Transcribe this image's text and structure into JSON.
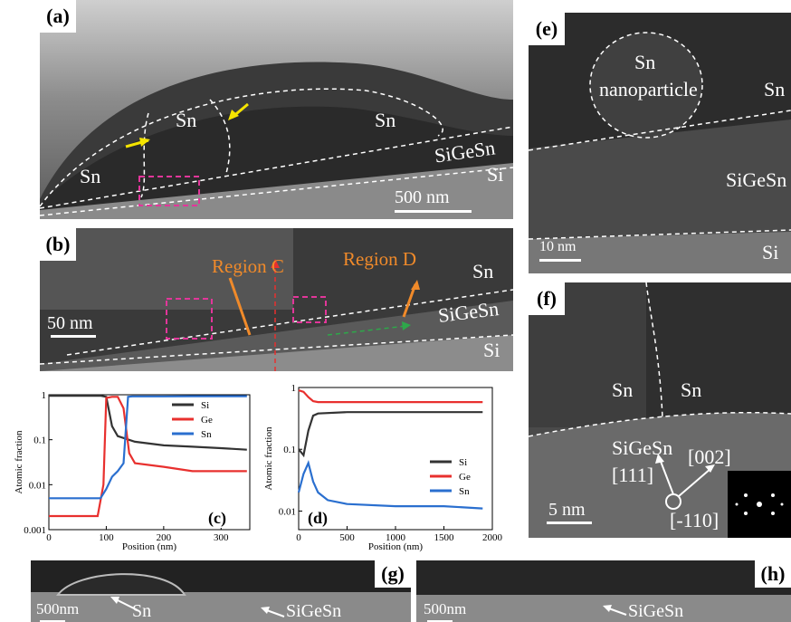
{
  "panels": {
    "a": {
      "tag": "(a)",
      "labels": [
        "Sn",
        "Sn",
        "Sn",
        "SiGeSn",
        "Si"
      ],
      "scale": "500 nm"
    },
    "b": {
      "tag": "(b)",
      "regionC": "Region C",
      "regionD": "Region D",
      "sn": "Sn",
      "sigesn": "SiGeSn",
      "si": "Si",
      "scale": "50 nm"
    },
    "e": {
      "tag": "(e)",
      "np1": "Sn",
      "np2": "nanoparticle",
      "sn": "Sn",
      "sigesn": "SiGeSn",
      "si": "Si",
      "scale": "10 nm"
    },
    "f": {
      "tag": "(f)",
      "sn1": "Sn",
      "sn2": "Sn",
      "sigesn": "SiGeSn",
      "d111": "[111]",
      "d002": "[002]",
      "d110": "[-110]",
      "scale": "5 nm"
    },
    "g": {
      "tag": "(g)",
      "scale": "500nm",
      "sn": "Sn",
      "sigesn": "SiGeSn"
    },
    "h": {
      "tag": "(h)",
      "scale": "500nm",
      "sigesn": "SiGeSn"
    }
  },
  "colors": {
    "si": "#333333",
    "ge": "#e8302e",
    "sn": "#2a6fcf",
    "magenta": "#e2369a",
    "orange": "#f08a2a"
  },
  "chart_data": [
    {
      "type": "line",
      "tag": "(c)",
      "xlabel": "Position (nm)",
      "ylabel": "Atomic fraction",
      "xlim": [
        0,
        350
      ],
      "ylim": [
        0.001,
        1
      ],
      "yscale": "log",
      "xticks": [
        "0",
        "100",
        "200",
        "300"
      ],
      "yticks": [
        "0.001",
        "0.01",
        "0.1",
        "1"
      ],
      "legend": "top-right",
      "series": [
        {
          "name": "Si",
          "x": [
            0,
            90,
            100,
            110,
            120,
            150,
            200,
            250,
            300,
            345
          ],
          "y": [
            0.95,
            0.95,
            0.9,
            0.2,
            0.12,
            0.09,
            0.075,
            0.07,
            0.065,
            0.06
          ]
        },
        {
          "name": "Ge",
          "x": [
            0,
            85,
            95,
            100,
            110,
            120,
            130,
            140,
            150,
            200,
            250,
            300,
            345
          ],
          "y": [
            0.002,
            0.002,
            0.01,
            0.85,
            0.9,
            0.9,
            0.5,
            0.05,
            0.03,
            0.025,
            0.02,
            0.02,
            0.02
          ]
        },
        {
          "name": "Sn",
          "x": [
            0,
            90,
            100,
            110,
            120,
            130,
            138,
            145,
            200,
            250,
            300,
            345
          ],
          "y": [
            0.005,
            0.005,
            0.008,
            0.015,
            0.02,
            0.03,
            0.9,
            0.92,
            0.92,
            0.93,
            0.93,
            0.93
          ]
        }
      ]
    },
    {
      "type": "line",
      "tag": "(d)",
      "xlabel": "Position (nm)",
      "ylabel": "Atomic fraction",
      "xlim": [
        0,
        2000
      ],
      "ylim": [
        0.005,
        1
      ],
      "yscale": "log",
      "xticks": [
        "0",
        "500",
        "1000",
        "1500",
        "2000"
      ],
      "yticks": [
        "0.01",
        "0.1",
        "1"
      ],
      "legend": "right",
      "series": [
        {
          "name": "Si",
          "x": [
            0,
            50,
            100,
            150,
            200,
            500,
            1000,
            1500,
            1900
          ],
          "y": [
            0.1,
            0.08,
            0.2,
            0.35,
            0.38,
            0.4,
            0.4,
            0.4,
            0.4
          ]
        },
        {
          "name": "Ge",
          "x": [
            0,
            50,
            100,
            150,
            200,
            500,
            1000,
            1500,
            1900
          ],
          "y": [
            0.9,
            0.85,
            0.7,
            0.6,
            0.58,
            0.58,
            0.58,
            0.58,
            0.58
          ]
        },
        {
          "name": "Sn",
          "x": [
            0,
            50,
            100,
            150,
            200,
            300,
            500,
            1000,
            1500,
            1900
          ],
          "y": [
            0.02,
            0.04,
            0.06,
            0.03,
            0.02,
            0.015,
            0.013,
            0.012,
            0.012,
            0.011
          ]
        }
      ]
    }
  ]
}
